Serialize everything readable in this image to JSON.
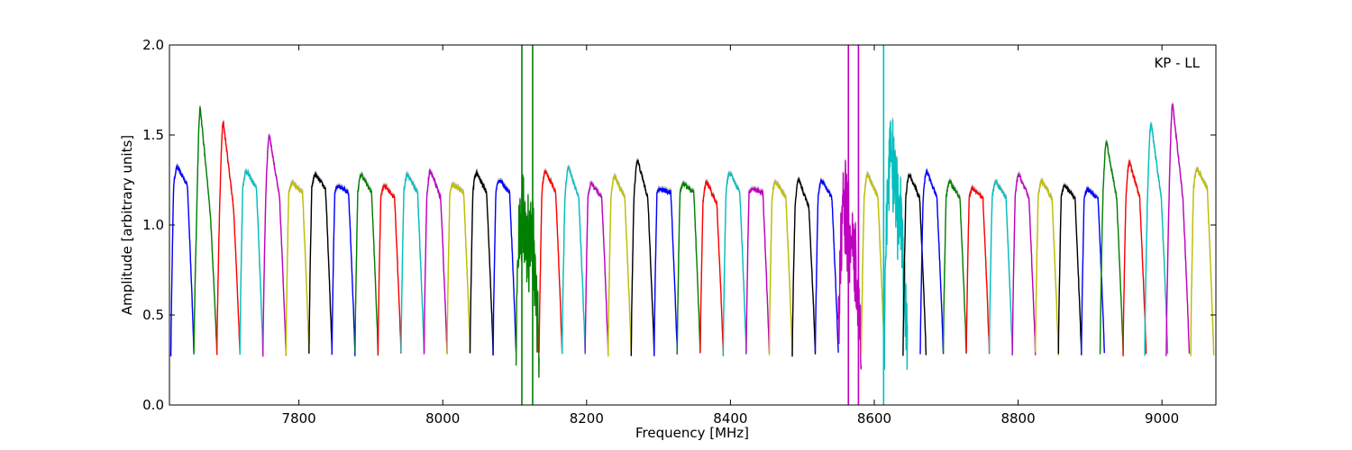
{
  "chart_data": {
    "type": "line",
    "xlabel": "Frequency [MHz]",
    "ylabel": "Amplitude [arbitrary units]",
    "annotation": "KP - LL",
    "xlim": [
      7620,
      9075
    ],
    "ylim": [
      0,
      2.0
    ],
    "xticks": [
      7800,
      8000,
      8200,
      8400,
      8600,
      8800,
      9000
    ],
    "yticks": [
      0.0,
      0.5,
      1.0,
      1.5,
      2.0
    ],
    "ytick_labels": [
      "0.0",
      "0.5",
      "1.0",
      "1.5",
      "2.0"
    ],
    "grid": false,
    "channel_width_mhz": 32,
    "gray_reference_color": "#bfbfbf",
    "series_colors": [
      "#0000ff",
      "#008000",
      "#ff0000",
      "#00bfbf",
      "#bf00bf",
      "#bfbf00",
      "#000000"
    ],
    "series": [
      {
        "start": 7622,
        "color": "#0000ff",
        "peak": 1.32,
        "plateau": 1.22
      },
      {
        "start": 7654,
        "color": "#008000",
        "peak": 1.65,
        "plateau": 1.05
      },
      {
        "start": 7686,
        "color": "#ff0000",
        "peak": 1.57,
        "plateau": 1.1
      },
      {
        "start": 7718,
        "color": "#00bfbf",
        "peak": 1.3,
        "plateau": 1.2
      },
      {
        "start": 7750,
        "color": "#bf00bf",
        "peak": 1.5,
        "plateau": 1.15
      },
      {
        "start": 7782,
        "color": "#bfbf00",
        "peak": 1.23,
        "plateau": 1.18
      },
      {
        "start": 7814,
        "color": "#000000",
        "peak": 1.28,
        "plateau": 1.2
      },
      {
        "start": 7846,
        "color": "#0000ff",
        "peak": 1.22,
        "plateau": 1.18
      },
      {
        "start": 7878,
        "color": "#008000",
        "peak": 1.28,
        "plateau": 1.18
      },
      {
        "start": 7910,
        "color": "#ff0000",
        "peak": 1.22,
        "plateau": 1.15
      },
      {
        "start": 7942,
        "color": "#00bfbf",
        "peak": 1.28,
        "plateau": 1.18
      },
      {
        "start": 7974,
        "color": "#bf00bf",
        "peak": 1.3,
        "plateau": 1.15
      },
      {
        "start": 8006,
        "color": "#bfbf00",
        "peak": 1.22,
        "plateau": 1.18
      },
      {
        "start": 8038,
        "color": "#000000",
        "peak": 1.29,
        "plateau": 1.18
      },
      {
        "start": 8070,
        "color": "#0000ff",
        "peak": 1.25,
        "plateau": 1.18
      },
      {
        "start": 8102,
        "color": "#008000",
        "peak": 1.15,
        "plateau": 1.0,
        "noisy": true
      },
      {
        "start": 8134,
        "color": "#ff0000",
        "peak": 1.3,
        "plateau": 1.18
      },
      {
        "start": 8166,
        "color": "#00bfbf",
        "peak": 1.32,
        "plateau": 1.15
      },
      {
        "start": 8198,
        "color": "#bf00bf",
        "peak": 1.23,
        "plateau": 1.15
      },
      {
        "start": 8230,
        "color": "#bfbf00",
        "peak": 1.27,
        "plateau": 1.15
      },
      {
        "start": 8262,
        "color": "#000000",
        "peak": 1.36,
        "plateau": 1.15
      },
      {
        "start": 8294,
        "color": "#0000ff",
        "peak": 1.2,
        "plateau": 1.18
      },
      {
        "start": 8326,
        "color": "#008000",
        "peak": 1.23,
        "plateau": 1.18
      },
      {
        "start": 8358,
        "color": "#ff0000",
        "peak": 1.24,
        "plateau": 1.12
      },
      {
        "start": 8390,
        "color": "#00bfbf",
        "peak": 1.29,
        "plateau": 1.18
      },
      {
        "start": 8422,
        "color": "#bf00bf",
        "peak": 1.2,
        "plateau": 1.18
      },
      {
        "start": 8454,
        "color": "#bfbf00",
        "peak": 1.24,
        "plateau": 1.15
      },
      {
        "start": 8486,
        "color": "#000000",
        "peak": 1.25,
        "plateau": 1.1
      },
      {
        "start": 8518,
        "color": "#0000ff",
        "peak": 1.25,
        "plateau": 1.15
      },
      {
        "start": 8550,
        "color": "#bf00bf",
        "peak": 1.2,
        "plateau": 0.95,
        "noisy": true
      },
      {
        "start": 8582,
        "color": "#bfbf00",
        "peak": 1.28,
        "plateau": 1.15
      },
      {
        "start": 8614,
        "color": "#00bfbf",
        "peak": 1.5,
        "plateau": 1.1,
        "noisy": true
      },
      {
        "start": 8640,
        "color": "#000000",
        "peak": 1.28,
        "plateau": 1.15
      },
      {
        "start": 8664,
        "color": "#0000ff",
        "peak": 1.3,
        "plateau": 1.15
      },
      {
        "start": 8696,
        "color": "#008000",
        "peak": 1.24,
        "plateau": 1.15
      },
      {
        "start": 8728,
        "color": "#ff0000",
        "peak": 1.2,
        "plateau": 1.15
      },
      {
        "start": 8760,
        "color": "#00bfbf",
        "peak": 1.24,
        "plateau": 1.15
      },
      {
        "start": 8792,
        "color": "#bf00bf",
        "peak": 1.28,
        "plateau": 1.15
      },
      {
        "start": 8824,
        "color": "#bfbf00",
        "peak": 1.24,
        "plateau": 1.15
      },
      {
        "start": 8856,
        "color": "#000000",
        "peak": 1.22,
        "plateau": 1.15
      },
      {
        "start": 8888,
        "color": "#0000ff",
        "peak": 1.2,
        "plateau": 1.15
      },
      {
        "start": 8914,
        "color": "#008000",
        "peak": 1.46,
        "plateau": 1.15
      },
      {
        "start": 8946,
        "color": "#ff0000",
        "peak": 1.35,
        "plateau": 1.15
      },
      {
        "start": 8976,
        "color": "#00bfbf",
        "peak": 1.56,
        "plateau": 1.15
      },
      {
        "start": 9006,
        "color": "#bf00bf",
        "peak": 1.67,
        "plateau": 1.15
      },
      {
        "start": 9040,
        "color": "#bfbf00",
        "peak": 1.31,
        "plateau": 1.2
      }
    ],
    "spikes": [
      {
        "x": 8110,
        "color": "#008000"
      },
      {
        "x": 8125,
        "color": "#008000"
      },
      {
        "x": 8564,
        "color": "#bf00bf"
      },
      {
        "x": 8578,
        "color": "#bf00bf"
      },
      {
        "x": 8613,
        "color": "#00bfbf"
      }
    ]
  }
}
